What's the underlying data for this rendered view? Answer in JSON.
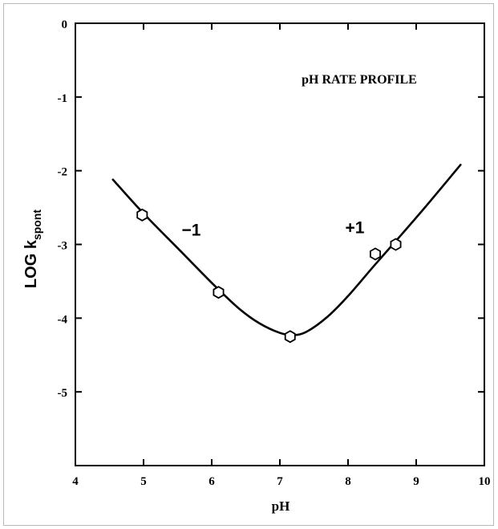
{
  "chart_data": {
    "type": "scatter",
    "title": "pH RATE PROFILE",
    "xlabel": "pH",
    "ylabel": "LOG k",
    "ylabel_sub": "spont",
    "xlim": [
      4,
      10
    ],
    "ylim": [
      -6,
      0
    ],
    "x_ticks": [
      "4",
      "5",
      "6",
      "7",
      "8",
      "9",
      "10"
    ],
    "y_ticks": [
      "0",
      "-1",
      "-2",
      "-3",
      "-4",
      "-5"
    ],
    "grid": false,
    "points": [
      {
        "x": 4.98,
        "y": -2.6
      },
      {
        "x": 6.1,
        "y": -3.65
      },
      {
        "x": 7.15,
        "y": -4.25
      },
      {
        "x": 8.4,
        "y": -3.13
      },
      {
        "x": 8.7,
        "y": -3.0
      }
    ],
    "fit_curve": [
      {
        "x": 4.55,
        "y": -2.12
      },
      {
        "x": 5.0,
        "y": -2.58
      },
      {
        "x": 5.5,
        "y": -3.05
      },
      {
        "x": 6.0,
        "y": -3.52
      },
      {
        "x": 6.4,
        "y": -3.87
      },
      {
        "x": 6.7,
        "y": -4.07
      },
      {
        "x": 7.0,
        "y": -4.2
      },
      {
        "x": 7.2,
        "y": -4.23
      },
      {
        "x": 7.4,
        "y": -4.18
      },
      {
        "x": 7.7,
        "y": -3.98
      },
      {
        "x": 8.0,
        "y": -3.7
      },
      {
        "x": 8.4,
        "y": -3.27
      },
      {
        "x": 8.8,
        "y": -2.85
      },
      {
        "x": 9.2,
        "y": -2.42
      },
      {
        "x": 9.65,
        "y": -1.92
      }
    ],
    "annotations": [
      {
        "text": "−1",
        "x": 5.7,
        "y": -2.88
      },
      {
        "text": "+1",
        "x": 8.1,
        "y": -2.85
      }
    ]
  }
}
